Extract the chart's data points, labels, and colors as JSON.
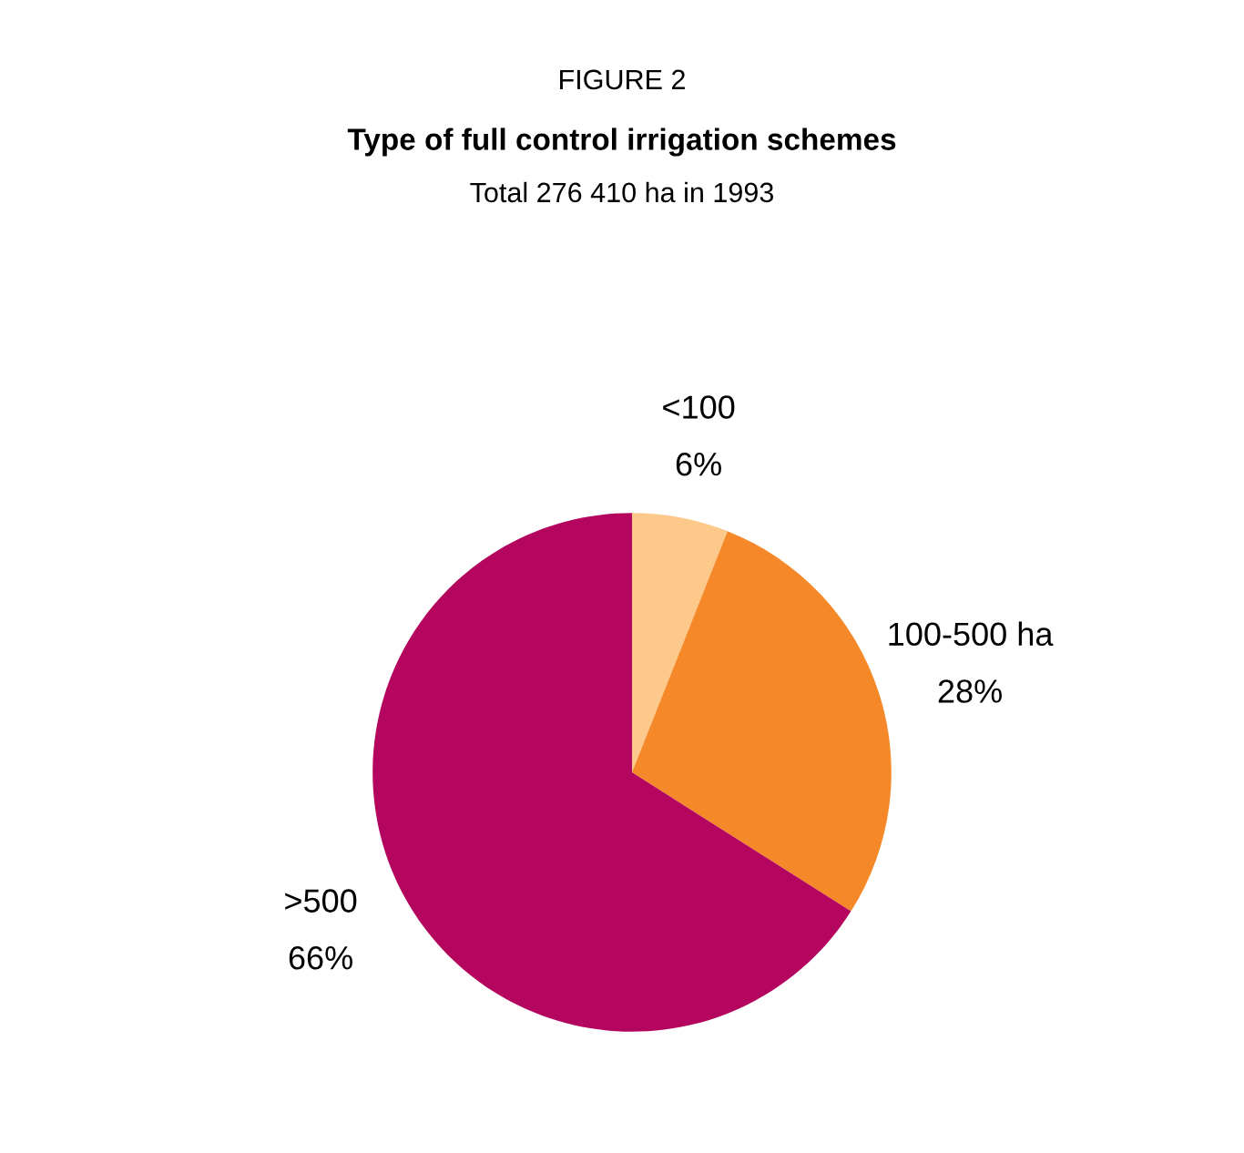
{
  "chart_data": {
    "type": "pie",
    "title": "Type of full control irrigation schemes",
    "subtitle": "Total 276 410 ha in 1993",
    "annotations": [
      "FIGURE 2"
    ],
    "categories": [
      "<100",
      "100-500 ha",
      ">500"
    ],
    "values": [
      6,
      28,
      66
    ],
    "value_labels": [
      "6%",
      "28%",
      "66%"
    ],
    "colors": [
      "#fdc98a",
      "#f5892a",
      "#b5065f"
    ],
    "legend": false
  }
}
